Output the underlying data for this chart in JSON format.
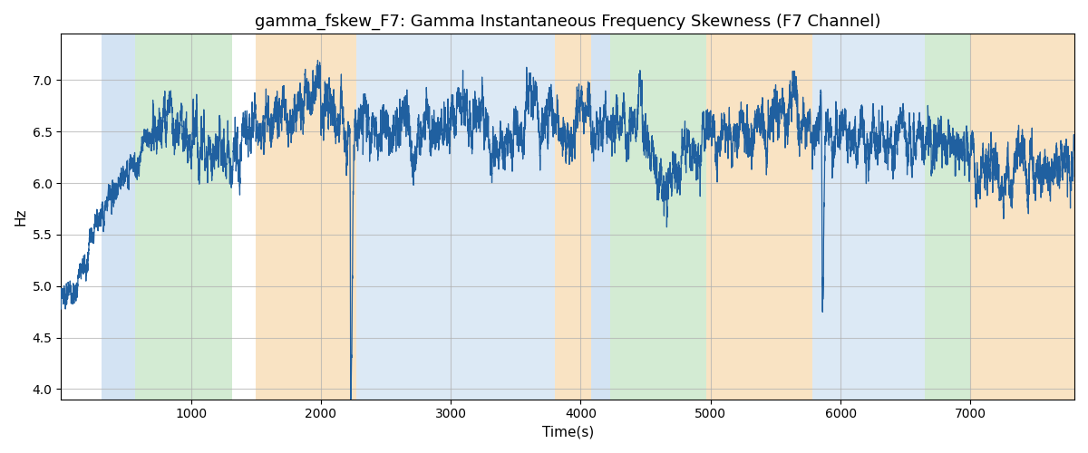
{
  "title": "gamma_fskew_F7: Gamma Instantaneous Frequency Skewness (F7 Channel)",
  "xlabel": "Time(s)",
  "ylabel": "Hz",
  "xlim": [
    0,
    7800
  ],
  "ylim": [
    3.9,
    7.45
  ],
  "yticks": [
    4.0,
    4.5,
    5.0,
    5.5,
    6.0,
    6.5,
    7.0
  ],
  "xticks": [
    1000,
    2000,
    3000,
    4000,
    5000,
    6000,
    7000
  ],
  "line_color": "#2060a0",
  "line_width": 0.9,
  "background_regions": [
    {
      "xmin": 310,
      "xmax": 570,
      "color": "#a8c8e8",
      "alpha": 0.5
    },
    {
      "xmin": 570,
      "xmax": 1320,
      "color": "#a8d8a8",
      "alpha": 0.5
    },
    {
      "xmin": 1500,
      "xmax": 2270,
      "color": "#f5c888",
      "alpha": 0.5
    },
    {
      "xmin": 2270,
      "xmax": 3800,
      "color": "#a8c8e8",
      "alpha": 0.4
    },
    {
      "xmin": 3800,
      "xmax": 4080,
      "color": "#f5c888",
      "alpha": 0.5
    },
    {
      "xmin": 4080,
      "xmax": 4230,
      "color": "#a8c8e8",
      "alpha": 0.5
    },
    {
      "xmin": 4230,
      "xmax": 4970,
      "color": "#a8d8a8",
      "alpha": 0.5
    },
    {
      "xmin": 4970,
      "xmax": 5780,
      "color": "#f5c888",
      "alpha": 0.5
    },
    {
      "xmin": 5780,
      "xmax": 6650,
      "color": "#a8c8e8",
      "alpha": 0.4
    },
    {
      "xmin": 6650,
      "xmax": 7000,
      "color": "#a8d8a8",
      "alpha": 0.5
    },
    {
      "xmin": 7000,
      "xmax": 7800,
      "color": "#f5c888",
      "alpha": 0.5
    }
  ],
  "grid_color": "#b0b0b0",
  "grid_alpha": 0.7,
  "title_fontsize": 13,
  "axis_fontsize": 11,
  "seed": 17
}
